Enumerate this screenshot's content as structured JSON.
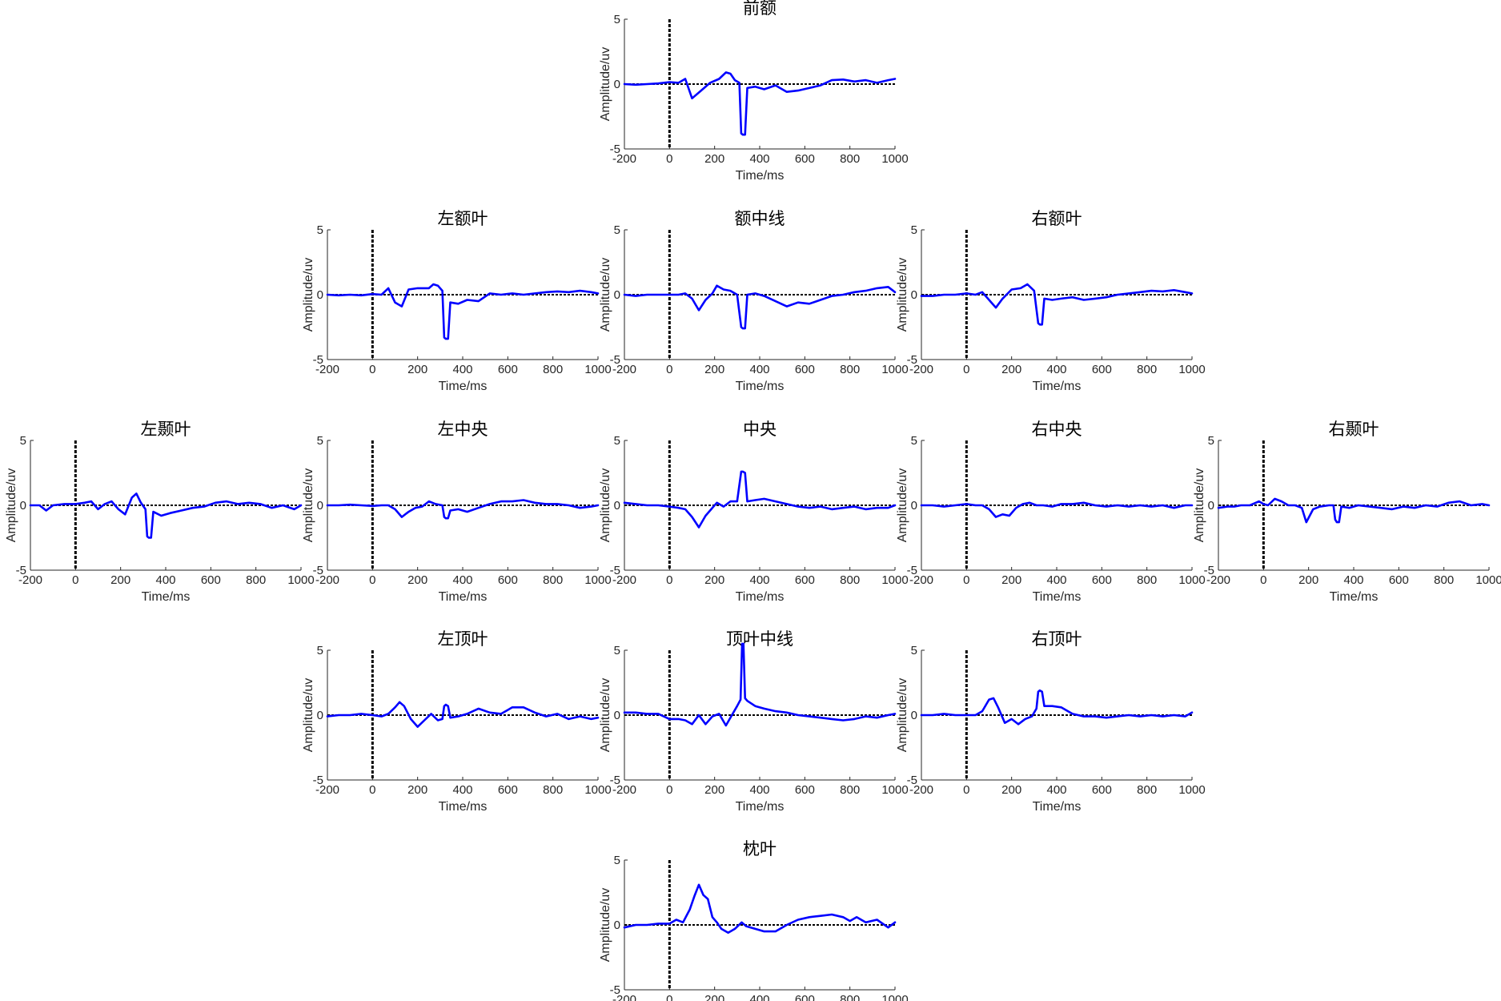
{
  "colors": {
    "signal": "#0000ff",
    "baseline": "#000000",
    "axis": "#262626"
  },
  "chart_data": [
    {
      "type": "line",
      "title": "前额",
      "xlabel": "Time/ms",
      "ylabel": "Amplitude/uv",
      "xlim": [
        -200,
        1000
      ],
      "ylim": [
        -5,
        5
      ],
      "xticks": [
        "-200",
        "0",
        "200",
        "400",
        "600",
        "800",
        "1000"
      ],
      "yticks": [
        "-5",
        "0",
        "5"
      ],
      "baseline_y": 0,
      "stimulus_onset_x": 0,
      "x": [
        -200,
        -150,
        -100,
        -50,
        0,
        40,
        70,
        100,
        140,
        180,
        220,
        250,
        270,
        290,
        310,
        318,
        325,
        335,
        345,
        380,
        420,
        470,
        520,
        570,
        620,
        670,
        720,
        770,
        820,
        870,
        920,
        970,
        1000
      ],
      "y": [
        0,
        -0.05,
        0,
        0.05,
        0.15,
        0.1,
        0.4,
        -1.1,
        -0.5,
        0.1,
        0.4,
        0.9,
        0.8,
        0.3,
        0.1,
        -3.8,
        -3.9,
        -3.9,
        -0.3,
        -0.2,
        -0.4,
        -0.1,
        -0.6,
        -0.5,
        -0.3,
        -0.1,
        0.3,
        0.35,
        0.2,
        0.3,
        0.1,
        0.3,
        0.4
      ]
    },
    {
      "type": "line",
      "title": "左额叶",
      "xlabel": "Time/ms",
      "ylabel": "Amplitude/uv",
      "xlim": [
        -200,
        1000
      ],
      "ylim": [
        -5,
        5
      ],
      "xticks": [
        "-200",
        "0",
        "200",
        "400",
        "600",
        "800",
        "1000"
      ],
      "yticks": [
        "-5",
        "0",
        "5"
      ],
      "baseline_y": 0,
      "stimulus_onset_x": 0,
      "x": [
        -200,
        -150,
        -100,
        -50,
        0,
        40,
        70,
        100,
        130,
        160,
        200,
        250,
        270,
        290,
        310,
        318,
        325,
        335,
        345,
        380,
        420,
        470,
        520,
        570,
        620,
        670,
        720,
        770,
        820,
        870,
        920,
        970,
        1000
      ],
      "y": [
        0,
        -0.05,
        0,
        -0.05,
        0.05,
        0,
        0.5,
        -0.6,
        -0.9,
        0.4,
        0.5,
        0.5,
        0.8,
        0.7,
        0.3,
        -3.3,
        -3.4,
        -3.4,
        -0.6,
        -0.7,
        -0.4,
        -0.5,
        0.1,
        0,
        0.1,
        0,
        0.1,
        0.2,
        0.25,
        0.2,
        0.3,
        0.2,
        0.1
      ]
    },
    {
      "type": "line",
      "title": "额中线",
      "xlabel": "Time/ms",
      "ylabel": "Amplitude/uv",
      "xlim": [
        -200,
        1000
      ],
      "ylim": [
        -5,
        5
      ],
      "xticks": [
        "-200",
        "0",
        "200",
        "400",
        "600",
        "800",
        "1000"
      ],
      "yticks": [
        "-5",
        "0",
        "5"
      ],
      "baseline_y": 0,
      "stimulus_onset_x": 0,
      "x": [
        -200,
        -150,
        -100,
        -50,
        0,
        40,
        70,
        100,
        130,
        160,
        190,
        210,
        240,
        270,
        300,
        318,
        325,
        335,
        345,
        380,
        420,
        470,
        520,
        570,
        620,
        670,
        720,
        770,
        820,
        870,
        920,
        970,
        1000
      ],
      "y": [
        0,
        -0.1,
        0,
        0,
        0,
        0,
        0.1,
        -0.3,
        -1.2,
        -0.4,
        0.1,
        0.7,
        0.4,
        0.3,
        0,
        -2.5,
        -2.6,
        -2.6,
        0,
        0.1,
        -0.1,
        -0.5,
        -0.9,
        -0.6,
        -0.7,
        -0.4,
        -0.1,
        0,
        0.2,
        0.3,
        0.5,
        0.6,
        0.2
      ]
    },
    {
      "type": "line",
      "title": "右额叶",
      "xlabel": "Time/ms",
      "ylabel": "Amplitude/uv",
      "xlim": [
        -200,
        1000
      ],
      "ylim": [
        -5,
        5
      ],
      "xticks": [
        "-200",
        "0",
        "200",
        "400",
        "600",
        "800",
        "1000"
      ],
      "yticks": [
        "-5",
        "0",
        "5"
      ],
      "baseline_y": 0,
      "stimulus_onset_x": 0,
      "x": [
        -200,
        -150,
        -100,
        -50,
        0,
        40,
        70,
        100,
        130,
        160,
        200,
        240,
        270,
        300,
        318,
        325,
        335,
        345,
        380,
        420,
        470,
        520,
        570,
        620,
        670,
        720,
        770,
        820,
        870,
        920,
        970,
        1000
      ],
      "y": [
        -0.1,
        -0.1,
        0,
        0,
        0.1,
        0,
        0.2,
        -0.4,
        -1.0,
        -0.3,
        0.4,
        0.5,
        0.8,
        0.3,
        -2.2,
        -2.3,
        -2.3,
        -0.3,
        -0.4,
        -0.3,
        -0.2,
        -0.4,
        -0.3,
        -0.2,
        0,
        0.1,
        0.2,
        0.3,
        0.25,
        0.35,
        0.2,
        0.1
      ]
    },
    {
      "type": "line",
      "title": "左颞叶",
      "xlabel": "Time/ms",
      "ylabel": "Amplitude/uv",
      "xlim": [
        -200,
        1000
      ],
      "ylim": [
        -5,
        5
      ],
      "xticks": [
        "-200",
        "0",
        "200",
        "400",
        "600",
        "800",
        "1000"
      ],
      "yticks": [
        "-5",
        "0",
        "5"
      ],
      "baseline_y": 0,
      "stimulus_onset_x": 0,
      "x": [
        -200,
        -160,
        -130,
        -100,
        -50,
        0,
        40,
        70,
        100,
        130,
        160,
        190,
        220,
        250,
        270,
        290,
        310,
        318,
        325,
        335,
        345,
        380,
        420,
        470,
        520,
        570,
        620,
        670,
        720,
        770,
        820,
        870,
        920,
        970,
        1000
      ],
      "y": [
        0,
        0,
        -0.4,
        0,
        0.1,
        0.1,
        0.2,
        0.3,
        -0.3,
        0.1,
        0.3,
        -0.3,
        -0.7,
        0.6,
        0.9,
        0.2,
        -0.3,
        -2.4,
        -2.5,
        -2.5,
        -0.5,
        -0.8,
        -0.6,
        -0.4,
        -0.2,
        -0.1,
        0.2,
        0.3,
        0.1,
        0.2,
        0.1,
        -0.2,
        0,
        -0.3,
        0
      ]
    },
    {
      "type": "line",
      "title": "左中央",
      "xlabel": "Time/ms",
      "ylabel": "Amplitude/uv",
      "xlim": [
        -200,
        1000
      ],
      "ylim": [
        -5,
        5
      ],
      "xticks": [
        "-200",
        "0",
        "200",
        "400",
        "600",
        "800",
        "1000"
      ],
      "yticks": [
        "-5",
        "0",
        "5"
      ],
      "baseline_y": 0,
      "stimulus_onset_x": 0,
      "x": [
        -200,
        -150,
        -100,
        -50,
        0,
        40,
        70,
        100,
        130,
        160,
        190,
        220,
        250,
        280,
        310,
        318,
        325,
        335,
        345,
        380,
        420,
        470,
        520,
        570,
        620,
        670,
        720,
        770,
        820,
        870,
        920,
        970,
        1000
      ],
      "y": [
        0,
        0,
        0.05,
        0,
        -0.05,
        0,
        0,
        -0.3,
        -0.9,
        -0.5,
        -0.2,
        -0.1,
        0.3,
        0.1,
        0,
        -0.9,
        -1.0,
        -1.0,
        -0.4,
        -0.3,
        -0.5,
        -0.2,
        0.1,
        0.3,
        0.3,
        0.4,
        0.2,
        0.1,
        0.1,
        0,
        -0.2,
        -0.1,
        0
      ]
    },
    {
      "type": "line",
      "title": "中央",
      "xlabel": "Time/ms",
      "ylabel": "Amplitude/uv",
      "xlim": [
        -200,
        1000
      ],
      "ylim": [
        -5,
        5
      ],
      "xticks": [
        "-200",
        "0",
        "200",
        "400",
        "600",
        "800",
        "1000"
      ],
      "yticks": [
        "-5",
        "0",
        "5"
      ],
      "baseline_y": 0,
      "stimulus_onset_x": 0,
      "x": [
        -200,
        -150,
        -100,
        -50,
        0,
        40,
        70,
        100,
        130,
        160,
        190,
        210,
        240,
        270,
        300,
        318,
        325,
        335,
        345,
        380,
        420,
        470,
        520,
        570,
        620,
        670,
        720,
        770,
        820,
        870,
        920,
        970,
        1000
      ],
      "y": [
        0.2,
        0.1,
        0,
        0,
        -0.1,
        -0.2,
        -0.3,
        -0.9,
        -1.7,
        -0.8,
        -0.2,
        0.2,
        -0.1,
        0.3,
        0.3,
        2.6,
        2.6,
        2.5,
        0.3,
        0.4,
        0.5,
        0.3,
        0.1,
        -0.1,
        -0.2,
        -0.1,
        -0.3,
        -0.2,
        -0.1,
        -0.3,
        -0.2,
        -0.2,
        0
      ]
    },
    {
      "type": "line",
      "title": "右中央",
      "xlabel": "Time/ms",
      "ylabel": "Amplitude/uv",
      "xlim": [
        -200,
        1000
      ],
      "ylim": [
        -5,
        5
      ],
      "xticks": [
        "-200",
        "0",
        "200",
        "400",
        "600",
        "800",
        "1000"
      ],
      "yticks": [
        "-5",
        "0",
        "5"
      ],
      "baseline_y": 0,
      "stimulus_onset_x": 0,
      "x": [
        -200,
        -150,
        -100,
        -50,
        0,
        40,
        70,
        100,
        130,
        160,
        190,
        220,
        250,
        280,
        310,
        340,
        380,
        420,
        470,
        520,
        570,
        620,
        670,
        720,
        770,
        820,
        870,
        920,
        970,
        1000
      ],
      "y": [
        0,
        0,
        -0.1,
        0,
        0.1,
        0,
        0,
        -0.3,
        -0.9,
        -0.7,
        -0.8,
        -0.2,
        0.1,
        0.2,
        0,
        0,
        -0.1,
        0.1,
        0.1,
        0.2,
        0,
        -0.1,
        0,
        -0.1,
        0,
        -0.1,
        0,
        -0.2,
        0,
        0
      ]
    },
    {
      "type": "line",
      "title": "右颞叶",
      "xlabel": "Time/ms",
      "ylabel": "Amplitude/uv",
      "xlim": [
        -200,
        1000
      ],
      "ylim": [
        -5,
        5
      ],
      "xticks": [
        "-200",
        "0",
        "200",
        "400",
        "600",
        "800",
        "1000"
      ],
      "yticks": [
        "-5",
        "0",
        "5"
      ],
      "baseline_y": 0,
      "stimulus_onset_x": 0,
      "x": [
        -200,
        -160,
        -130,
        -100,
        -60,
        -20,
        0,
        20,
        50,
        80,
        110,
        140,
        170,
        190,
        220,
        250,
        290,
        310,
        318,
        325,
        335,
        345,
        380,
        420,
        470,
        520,
        570,
        620,
        670,
        720,
        770,
        820,
        870,
        920,
        970,
        1000
      ],
      "y": [
        -0.2,
        -0.1,
        -0.1,
        0,
        0,
        0.3,
        0.1,
        0,
        0.5,
        0.3,
        0,
        0,
        -0.2,
        -1.3,
        -0.3,
        -0.1,
        0,
        0,
        -1.1,
        -1.3,
        -1.3,
        -0.1,
        -0.2,
        0,
        -0.1,
        -0.2,
        -0.3,
        -0.1,
        -0.2,
        0,
        -0.1,
        0.2,
        0.3,
        0,
        0.1,
        0
      ]
    },
    {
      "type": "line",
      "title": "左顶叶",
      "xlabel": "Time/ms",
      "ylabel": "Amplitude/uv",
      "xlim": [
        -200,
        1000
      ],
      "ylim": [
        -5,
        5
      ],
      "xticks": [
        "-200",
        "0",
        "200",
        "400",
        "600",
        "800",
        "1000"
      ],
      "yticks": [
        "-5",
        "0",
        "5"
      ],
      "baseline_y": 0,
      "stimulus_onset_x": 0,
      "x": [
        -200,
        -150,
        -100,
        -50,
        0,
        40,
        70,
        100,
        120,
        140,
        170,
        200,
        230,
        260,
        290,
        310,
        318,
        325,
        335,
        345,
        380,
        420,
        470,
        520,
        570,
        620,
        670,
        720,
        770,
        820,
        870,
        920,
        970,
        1000
      ],
      "y": [
        -0.1,
        0,
        0,
        0.1,
        0,
        -0.1,
        0.1,
        0.6,
        1.0,
        0.7,
        -0.3,
        -0.9,
        -0.4,
        0.1,
        -0.4,
        -0.3,
        0.7,
        0.8,
        0.7,
        -0.2,
        -0.1,
        0.1,
        0.5,
        0.2,
        0.1,
        0.6,
        0.6,
        0.2,
        -0.1,
        0.1,
        -0.3,
        -0.1,
        -0.3,
        -0.2
      ]
    },
    {
      "type": "line",
      "title": "顶叶中线",
      "xlabel": "Time/ms",
      "ylabel": "Amplitude/uv",
      "xlim": [
        -200,
        1000
      ],
      "ylim": [
        -5,
        5
      ],
      "xticks": [
        "-200",
        "0",
        "200",
        "400",
        "600",
        "800",
        "1000"
      ],
      "yticks": [
        "-5",
        "0",
        "5"
      ],
      "baseline_y": 0,
      "stimulus_onset_x": 0,
      "x": [
        -200,
        -150,
        -100,
        -50,
        0,
        40,
        70,
        100,
        130,
        160,
        190,
        220,
        250,
        280,
        300,
        315,
        322,
        328,
        335,
        345,
        380,
        420,
        470,
        520,
        570,
        620,
        670,
        720,
        770,
        820,
        870,
        920,
        970,
        1000
      ],
      "y": [
        0.2,
        0.2,
        0.1,
        0.1,
        -0.3,
        -0.3,
        -0.4,
        -0.7,
        0,
        -0.7,
        -0.1,
        0.1,
        -0.8,
        0.1,
        0.7,
        1.2,
        5.5,
        5.5,
        1.3,
        1.1,
        0.7,
        0.5,
        0.3,
        0.2,
        0,
        -0.1,
        -0.2,
        -0.3,
        -0.4,
        -0.3,
        -0.1,
        -0.2,
        0,
        0.1
      ]
    },
    {
      "type": "line",
      "title": "右顶叶",
      "xlabel": "Time/ms",
      "ylabel": "Amplitude/uv",
      "xlim": [
        -200,
        1000
      ],
      "ylim": [
        -5,
        5
      ],
      "xticks": [
        "-200",
        "0",
        "200",
        "400",
        "600",
        "800",
        "1000"
      ],
      "yticks": [
        "-5",
        "0",
        "5"
      ],
      "baseline_y": 0,
      "stimulus_onset_x": 0,
      "x": [
        -200,
        -150,
        -100,
        -50,
        0,
        40,
        70,
        100,
        120,
        140,
        170,
        200,
        230,
        260,
        290,
        310,
        318,
        325,
        335,
        345,
        380,
        420,
        470,
        520,
        570,
        620,
        670,
        720,
        770,
        820,
        870,
        920,
        970,
        1000
      ],
      "y": [
        0,
        0,
        0.1,
        0,
        0,
        0,
        0.3,
        1.2,
        1.3,
        0.6,
        -0.6,
        -0.3,
        -0.7,
        -0.3,
        -0.1,
        0.5,
        1.8,
        1.9,
        1.8,
        0.7,
        0.7,
        0.6,
        0.1,
        -0.1,
        -0.1,
        -0.2,
        -0.1,
        0,
        -0.1,
        0,
        -0.1,
        0,
        -0.1,
        0.2
      ]
    },
    {
      "type": "line",
      "title": "枕叶",
      "xlabel": "Time/ms",
      "ylabel": "Amplitude/uv",
      "xlim": [
        -200,
        1000
      ],
      "ylim": [
        -5,
        5
      ],
      "xticks": [
        "-200",
        "0",
        "200",
        "400",
        "600",
        "800",
        "1000"
      ],
      "yticks": [
        "-5",
        "0",
        "5"
      ],
      "baseline_y": 0,
      "stimulus_onset_x": 0,
      "x": [
        -200,
        -150,
        -100,
        -50,
        0,
        30,
        60,
        90,
        110,
        130,
        150,
        170,
        190,
        210,
        230,
        260,
        290,
        320,
        340,
        380,
        420,
        470,
        520,
        570,
        620,
        670,
        720,
        770,
        800,
        830,
        870,
        920,
        970,
        1000
      ],
      "y": [
        -0.2,
        0,
        0,
        0.1,
        0.1,
        0.4,
        0.2,
        1.2,
        2.2,
        3.1,
        2.3,
        2.0,
        0.6,
        0.2,
        -0.3,
        -0.6,
        -0.3,
        0.2,
        -0.1,
        -0.3,
        -0.5,
        -0.5,
        0,
        0.4,
        0.6,
        0.7,
        0.8,
        0.6,
        0.3,
        0.6,
        0.2,
        0.4,
        -0.2,
        0.2
      ]
    }
  ]
}
